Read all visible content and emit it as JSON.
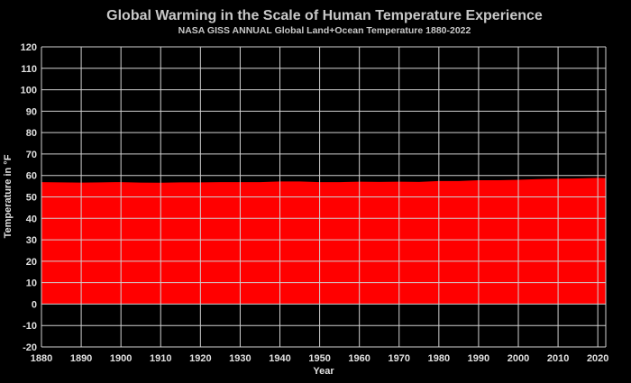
{
  "chart_data": {
    "type": "area",
    "title": "Global Warming in the Scale of Human Temperature Experience",
    "subtitle": "NASA GISS ANNUAL Global Land+Ocean Temperature 1880-2022",
    "xlabel": "Year",
    "ylabel": "Temperature in °F",
    "xlim": [
      1880,
      2022
    ],
    "ylim": [
      -20,
      120
    ],
    "xticks": [
      1880,
      1890,
      1900,
      1910,
      1920,
      1930,
      1940,
      1950,
      1960,
      1970,
      1980,
      1990,
      2000,
      2010,
      2020
    ],
    "yticks": [
      -20,
      -10,
      0,
      10,
      20,
      30,
      40,
      50,
      60,
      70,
      80,
      90,
      100,
      110,
      120
    ],
    "grid": true,
    "colors": {
      "background": "#000000",
      "fill": "#ff0000",
      "grid": "#d0d0d0",
      "text": "#e0e0e0"
    },
    "series": [
      {
        "x": [
          1880,
          1885,
          1890,
          1895,
          1900,
          1905,
          1910,
          1915,
          1920,
          1925,
          1930,
          1935,
          1940,
          1945,
          1950,
          1955,
          1960,
          1965,
          1970,
          1975,
          1980,
          1985,
          1990,
          1995,
          2000,
          2005,
          2010,
          2015,
          2020,
          2022
        ],
        "y": [
          56.9,
          56.8,
          56.7,
          56.8,
          56.9,
          56.7,
          56.6,
          56.8,
          56.8,
          56.9,
          56.9,
          56.9,
          57.2,
          57.2,
          56.9,
          56.9,
          57.1,
          57.0,
          57.1,
          57.0,
          57.4,
          57.4,
          57.8,
          57.8,
          58.0,
          58.3,
          58.5,
          58.6,
          58.9,
          58.8
        ]
      }
    ]
  }
}
